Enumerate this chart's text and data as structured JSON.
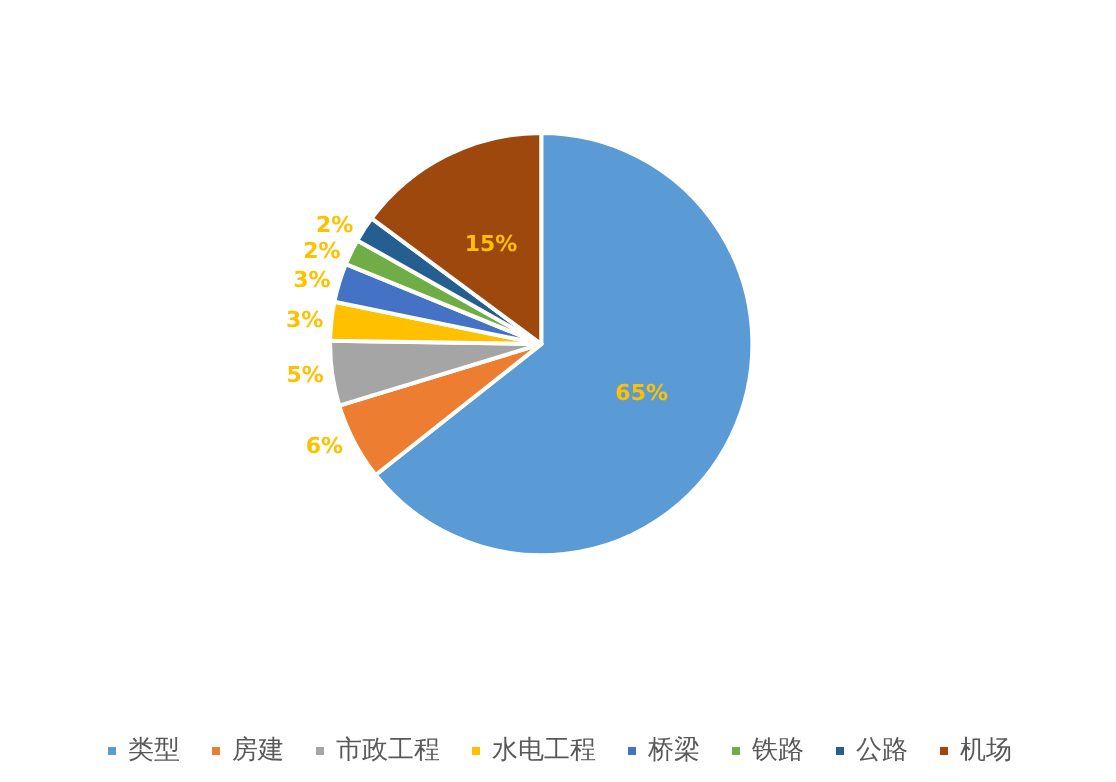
{
  "chart_data": {
    "type": "pie",
    "categories": [
      "类型",
      "房建",
      "市政工程",
      "水电工程",
      "桥梁",
      "铁路",
      "公路",
      "机场"
    ],
    "values": [
      65,
      6,
      5,
      3,
      3,
      2,
      2,
      15
    ],
    "colors": [
      "#5b9bd5",
      "#ed7d31",
      "#a5a5a5",
      "#ffc000",
      "#4472c4",
      "#70ad47",
      "#255e91",
      "#9e480e"
    ],
    "value_labels": [
      "65%",
      "6%",
      "5%",
      "3%",
      "3%",
      "2%",
      "2%",
      "15%"
    ],
    "legend": "bottom"
  }
}
